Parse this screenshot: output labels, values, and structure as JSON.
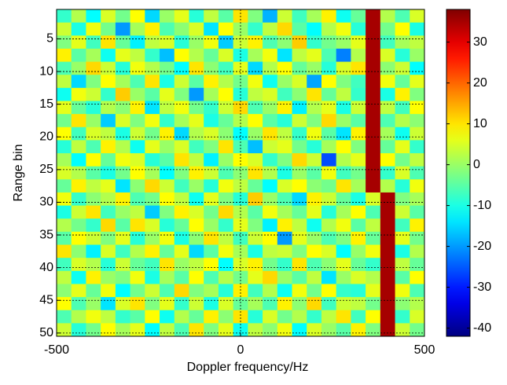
{
  "chart_data": {
    "type": "heatmap",
    "xlabel": "Doppler frequency/Hz",
    "ylabel": "Range bin",
    "xlim": [
      -500,
      500
    ],
    "xticks": [
      -500,
      0,
      500
    ],
    "ylim": [
      0.5,
      50.5
    ],
    "yticks": [
      5,
      10,
      15,
      20,
      25,
      30,
      35,
      40,
      45,
      50
    ],
    "y_reversed": true,
    "zlim": [
      -42,
      38
    ],
    "zticks": [
      -40,
      -30,
      -20,
      -10,
      0,
      10,
      20,
      30
    ],
    "colormap": "jet",
    "grid": true,
    "z": [
      [
        -8,
        2,
        -12,
        5,
        -3,
        8,
        -15,
        0,
        6,
        -9,
        3,
        -5,
        10,
        -2,
        -18,
        4,
        -7,
        1,
        9,
        -11,
        -4,
        35,
        2,
        -6,
        5
      ],
      [
        4,
        -10,
        7,
        -3,
        -20,
        1,
        9,
        -6,
        -1,
        5,
        -14,
        8,
        0,
        -8,
        3,
        11,
        -5,
        -12,
        2,
        7,
        -9,
        35,
        -3,
        8,
        -10
      ],
      [
        -2,
        6,
        -7,
        10,
        -4,
        -13,
        3,
        5,
        -9,
        0,
        7,
        -16,
        4,
        9,
        -6,
        -1,
        12,
        -8,
        -3,
        0,
        6,
        35,
        -7,
        1,
        3
      ],
      [
        9,
        -5,
        1,
        -11,
        6,
        3,
        -8,
        -17,
        8,
        2,
        -4,
        5,
        -10,
        1,
        7,
        -14,
        3,
        6,
        -6,
        -22,
        2,
        35,
        5,
        -9,
        0
      ],
      [
        -6,
        0,
        11,
        4,
        -9,
        7,
        2,
        -3,
        -12,
        10,
        -1,
        -7,
        6,
        -15,
        2,
        8,
        -4,
        0,
        -9,
        5,
        10,
        35,
        -1,
        4,
        -12
      ],
      [
        3,
        -15,
        -2,
        8,
        1,
        -6,
        10,
        -10,
        4,
        -5,
        9,
        2,
        -3,
        7,
        -11,
        0,
        5,
        -19,
        8,
        -2,
        -7,
        35,
        7,
        -4,
        6
      ],
      [
        -11,
        7,
        4,
        -8,
        12,
        0,
        -5,
        6,
        -2,
        -20,
        1,
        8,
        -9,
        3,
        5,
        -7,
        -1,
        10,
        -4,
        3,
        -8,
        35,
        -10,
        9,
        -2
      ],
      [
        6,
        -4,
        -9,
        2,
        -1,
        9,
        -14,
        3,
        7,
        -3,
        -8,
        4,
        11,
        -6,
        0,
        9,
        -13,
        2,
        6,
        -10,
        4,
        35,
        3,
        -7,
        8
      ],
      [
        -3,
        10,
        0,
        -16,
        5,
        -2,
        7,
        -8,
        1,
        6,
        -10,
        -4,
        2,
        8,
        -5,
        -9,
        4,
        -2,
        11,
        0,
        -5,
        35,
        -6,
        2,
        -1
      ],
      [
        8,
        -7,
        5,
        3,
        -10,
        4,
        -3,
        9,
        -15,
        2,
        5,
        -1,
        -12,
        0,
        10,
        3,
        -8,
        7,
        -5,
        -14,
        9,
        35,
        1,
        -11,
        4
      ],
      [
        -9,
        3,
        -6,
        9,
        2,
        -11,
        6,
        0,
        5,
        -7,
        -2,
        10,
        -6,
        -17,
        4,
        6,
        -3,
        -9,
        1,
        8,
        -2,
        35,
        -4,
        6,
        -8
      ],
      [
        1,
        -12,
        8,
        -4,
        7,
        5,
        -9,
        -5,
        10,
        3,
        -13,
        0,
        8,
        5,
        -8,
        -2,
        11,
        4,
        -26,
        2,
        6,
        35,
        8,
        -3,
        3
      ],
      [
        5,
        2,
        -5,
        -10,
        -3,
        8,
        1,
        -12,
        -2,
        9,
        4,
        -6,
        -1,
        10,
        2,
        -10,
        0,
        -5,
        7,
        -7,
        -3,
        35,
        -8,
        5,
        -6
      ],
      [
        -4,
        9,
        3,
        6,
        -14,
        -1,
        11,
        4,
        -7,
        0,
        -9,
        7,
        3,
        -4,
        -12,
        5,
        8,
        -1,
        -3,
        10,
        1,
        35,
        2,
        -9,
        7
      ],
      [
        7,
        -8,
        -1,
        2,
        9,
        -6,
        -3,
        8,
        3,
        -11,
        6,
        -2,
        -9,
        12,
        0,
        -6,
        -15,
        9,
        4,
        -4,
        -10,
        5,
        35,
        -2,
        1
      ],
      [
        -10,
        4,
        10,
        -7,
        0,
        3,
        -16,
        -2,
        9,
        5,
        -3,
        11,
        2,
        -5,
        7,
        1,
        -4,
        6,
        -9,
        1,
        8,
        -6,
        35,
        4,
        -5
      ],
      [
        2,
        -3,
        -8,
        11,
        -5,
        10,
        5,
        -9,
        -4,
        8,
        0,
        -8,
        6,
        -2,
        -13,
        9,
        3,
        -11,
        2,
        7,
        -5,
        3,
        35,
        -7,
        9
      ],
      [
        -5,
        8,
        4,
        -2,
        6,
        -9,
        0,
        7,
        -10,
        -1,
        10,
        3,
        -7,
        4,
        8,
        -20,
        6,
        0,
        -6,
        -2,
        9,
        -4,
        35,
        6,
        -3
      ],
      [
        10,
        -1,
        -13,
        5,
        -7,
        2,
        9,
        -4,
        6,
        -15,
        -5,
        7,
        1,
        -10,
        3,
        4,
        -2,
        8,
        5,
        -12,
        0,
        7,
        35,
        -10,
        2
      ],
      [
        -7,
        5,
        2,
        -9,
        4,
        -4,
        -7,
        10,
        0,
        3,
        8,
        -12,
        5,
        9,
        -3,
        -8,
        10,
        -6,
        -1,
        6,
        -4,
        -8,
        35,
        3,
        -4
      ],
      [
        3,
        -11,
        9,
        0,
        -2,
        7,
        -10,
        1,
        -5,
        8,
        -6,
        2,
        -3,
        6,
        11,
        0,
        -5,
        3,
        -14,
        0,
        5,
        2,
        35,
        -5,
        8
      ],
      [
        -1,
        6,
        -4,
        7,
        -12,
        -3,
        4,
        -6,
        11,
        -2,
        1,
        -9,
        9,
        -7,
        2,
        -11,
        7,
        -3,
        8,
        -8,
        -9,
        6,
        35,
        7,
        -6
      ],
      [
        8,
        -6,
        0,
        -14,
        5,
        10,
        -2,
        6,
        -8,
        4,
        -10,
        5,
        -4,
        1,
        -6,
        9,
        -1,
        11,
        -7,
        4,
        3,
        -3,
        35,
        -1,
        2
      ],
      [
        -6,
        2,
        7,
        3,
        -8,
        -5,
        8,
        -11,
        2,
        -4,
        9,
        -1,
        10,
        -9,
        5,
        -3,
        2,
        -8,
        3,
        10,
        -7,
        8,
        35,
        -8,
        5
      ],
      [
        4,
        -9,
        -3,
        8,
        1,
        6,
        -12,
        3,
        -6,
        10,
        -2,
        6,
        -11,
        3,
        -1,
        7,
        -12,
        5,
        0,
        -5,
        9,
        -2,
        35,
        4,
        -3
      ]
    ]
  }
}
